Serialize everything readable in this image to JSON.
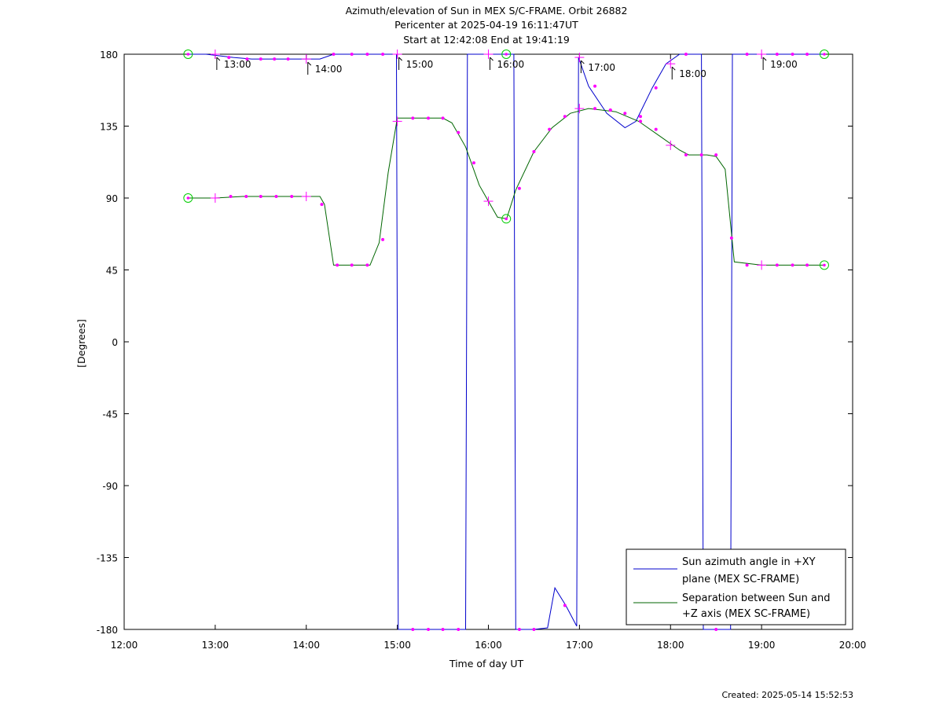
{
  "title_lines": [
    "Azimuth/elevation of Sun in MEX S/C-FRAME.  Orbit 26882",
    "Pericenter at 2025-04-19 16:11:47UT",
    "Start at 12:42:08 End at 19:41:19"
  ],
  "created": "Created: 2025-05-14 15:52:53",
  "chart_data": {
    "type": "line",
    "xlabel": "Time of day UT",
    "ylabel": "[Degrees]",
    "xlim": [
      12.0,
      20.0
    ],
    "ylim": [
      -180,
      180
    ],
    "x_ticks": [
      {
        "v": 12,
        "label": "12:00"
      },
      {
        "v": 13,
        "label": "13:00"
      },
      {
        "v": 14,
        "label": "14:00"
      },
      {
        "v": 15,
        "label": "15:00"
      },
      {
        "v": 16,
        "label": "16:00"
      },
      {
        "v": 17,
        "label": "17:00"
      },
      {
        "v": 18,
        "label": "18:00"
      },
      {
        "v": 19,
        "label": "19:00"
      },
      {
        "v": 20,
        "label": "20:00"
      }
    ],
    "y_ticks": [
      {
        "v": 180,
        "label": "180"
      },
      {
        "v": 135,
        "label": "135"
      },
      {
        "v": 90,
        "label": "90"
      },
      {
        "v": 45,
        "label": "45"
      },
      {
        "v": 0,
        "label": "0"
      },
      {
        "v": -45,
        "label": "-45"
      },
      {
        "v": -90,
        "label": "-90"
      },
      {
        "v": -135,
        "label": "-135"
      },
      {
        "v": -180,
        "label": "-180"
      }
    ],
    "legend_position": "bottom-right",
    "series": [
      {
        "name_lines": [
          "Sun azimuth angle in +XY",
          "plane (MEX SC-FRAME)"
        ],
        "color": "#0000cc",
        "x": [
          12.702,
          12.9,
          13.2,
          13.4,
          13.6,
          14.0,
          14.15,
          14.3,
          14.6,
          14.85,
          14.99,
          15.0,
          15.01,
          15.3,
          15.6,
          15.75,
          15.76,
          15.77,
          16.0,
          16.2,
          16.28,
          16.29,
          16.3,
          16.5,
          16.65,
          16.73,
          16.85,
          16.97,
          16.98,
          16.99,
          17.1,
          17.3,
          17.5,
          17.62,
          17.8,
          17.95,
          18.1,
          18.34,
          18.35,
          18.36,
          18.5,
          18.66,
          18.67,
          18.68,
          19.0,
          19.3,
          19.689
        ],
        "y": [
          180,
          180,
          178,
          177,
          177,
          177,
          177,
          180,
          180,
          180,
          180,
          0,
          -180,
          -180,
          -180,
          -180,
          0,
          180,
          180,
          180,
          180,
          0,
          -180,
          -180,
          -179,
          -154,
          -165,
          -178,
          0,
          178,
          160,
          143,
          134,
          138,
          159,
          174,
          180,
          180,
          0,
          -180,
          -180,
          -180,
          0,
          180,
          180,
          180,
          180
        ]
      },
      {
        "name_lines": [
          "Separation between Sun and",
          "+Z axis (MEX SC-FRAME)"
        ],
        "color": "#006600",
        "x": [
          12.702,
          13.0,
          13.3,
          13.6,
          13.9,
          14.15,
          14.2,
          14.3,
          14.6,
          14.7,
          14.8,
          14.9,
          15.0,
          15.2,
          15.5,
          15.6,
          15.75,
          15.9,
          16.1,
          16.2,
          16.3,
          16.5,
          16.7,
          16.9,
          17.1,
          17.4,
          17.65,
          17.9,
          18.1,
          18.2,
          18.4,
          18.5,
          18.6,
          18.7,
          19.0,
          19.3,
          19.689
        ],
        "y": [
          90,
          90,
          91,
          91,
          91,
          91,
          86,
          48,
          48,
          48,
          62,
          106,
          140,
          140,
          140,
          137,
          122,
          98,
          78,
          77,
          95,
          119,
          134,
          143,
          146,
          144,
          138,
          128,
          120,
          117,
          117,
          116,
          108,
          50,
          48,
          48,
          48
        ]
      }
    ],
    "sample_markers": {
      "azimuth": [
        [
          13.15,
          178
        ],
        [
          13.35,
          177
        ],
        [
          13.5,
          177
        ],
        [
          13.65,
          177
        ],
        [
          13.8,
          177
        ],
        [
          14.3,
          180
        ],
        [
          14.5,
          180
        ],
        [
          14.67,
          180
        ],
        [
          14.84,
          180
        ],
        [
          15.17,
          -180
        ],
        [
          15.34,
          -180
        ],
        [
          15.5,
          -180
        ],
        [
          15.67,
          -180
        ],
        [
          16.34,
          -180
        ],
        [
          16.5,
          -180
        ],
        [
          16.84,
          -165
        ],
        [
          17.17,
          160
        ],
        [
          17.34,
          145
        ],
        [
          17.67,
          138
        ],
        [
          17.84,
          159
        ],
        [
          18.17,
          180
        ],
        [
          18.5,
          -180
        ],
        [
          18.84,
          180
        ],
        [
          19.17,
          180
        ],
        [
          19.34,
          180
        ],
        [
          19.5,
          180
        ]
      ],
      "separation": [
        [
          13.17,
          91
        ],
        [
          13.34,
          91
        ],
        [
          13.5,
          91
        ],
        [
          13.67,
          91
        ],
        [
          13.84,
          91
        ],
        [
          14.17,
          86
        ],
        [
          14.34,
          48
        ],
        [
          14.5,
          48
        ],
        [
          14.67,
          48
        ],
        [
          14.84,
          64
        ],
        [
          15.17,
          140
        ],
        [
          15.34,
          140
        ],
        [
          15.5,
          140
        ],
        [
          15.67,
          131
        ],
        [
          15.84,
          112
        ],
        [
          16.34,
          96
        ],
        [
          16.5,
          119
        ],
        [
          16.67,
          133
        ],
        [
          16.84,
          141
        ],
        [
          17.17,
          146
        ],
        [
          17.34,
          145
        ],
        [
          17.5,
          143
        ],
        [
          17.67,
          141
        ],
        [
          17.84,
          133
        ],
        [
          18.17,
          117
        ],
        [
          18.34,
          117
        ],
        [
          18.5,
          117
        ],
        [
          18.67,
          65
        ],
        [
          18.84,
          48
        ],
        [
          19.17,
          48
        ],
        [
          19.34,
          48
        ],
        [
          19.5,
          48
        ]
      ]
    },
    "hour_markers": [
      {
        "label": "13:00",
        "x": 13.0,
        "az": 180,
        "sep": 90
      },
      {
        "label": "14:00",
        "x": 14.0,
        "az": 177,
        "sep": 91
      },
      {
        "label": "15:00",
        "x": 15.0,
        "az": 180,
        "sep": 138
      },
      {
        "label": "16:00",
        "x": 16.0,
        "az": 180,
        "sep": 88
      },
      {
        "label": "17:00",
        "x": 17.0,
        "az": 178,
        "sep": 146
      },
      {
        "label": "18:00",
        "x": 18.0,
        "az": 174,
        "sep": 123
      },
      {
        "label": "19:00",
        "x": 19.0,
        "az": 180,
        "sep": 48
      }
    ],
    "event_markers": [
      {
        "label": "start",
        "x": 12.702,
        "az": 180,
        "sep": 90
      },
      {
        "label": "pericenter",
        "x": 16.196,
        "az": 180,
        "sep": 77
      },
      {
        "label": "end",
        "x": 19.689,
        "az": 180,
        "sep": 48
      }
    ]
  }
}
